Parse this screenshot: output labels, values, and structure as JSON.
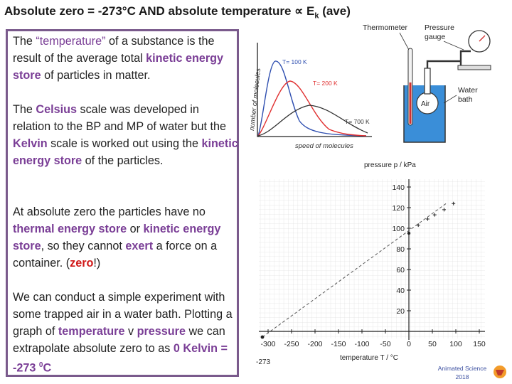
{
  "title": {
    "pre": "Absolute zero  = -273°C  AND absolute temperature ∝ E",
    "sub": "k",
    "post": " (ave)"
  },
  "p1": {
    "a": "The ",
    "b": "“temperature”",
    "c": " of a substance is the result of the average total ",
    "d": "kinetic energy store",
    "e": " of particles in matter."
  },
  "p2": {
    "a": "The ",
    "b": "Celsius",
    "c": " scale was developed in relation to the BP and MP of water but the ",
    "d": "Kelvin",
    "e": " scale is worked out using the ",
    "f": "kinetic energy store",
    "g": " of the particles."
  },
  "p3": {
    "a": "At absolute zero the particles have no ",
    "b": "thermal energy store",
    "c": " or ",
    "d": "kinetic energy store",
    "e": ", so they cannot ",
    "f": "exert",
    "g": " a force on a container. (",
    "h": "zero",
    "i": "!)"
  },
  "p4": {
    "a": "We can conduct a simple experiment with some trapped air in a water bath. Plotting a graph of ",
    "b": "temperature",
    "c": " v ",
    "d": "pressure",
    "e": " we can extrapolate absolute zero to as ",
    "f": "0 Kelvin = -273 ",
    "g": "0",
    "h": "C"
  },
  "sketch": {
    "ylabel": "number of molecules",
    "xlabel": "speed of molecules",
    "labels": [
      "T= 100 K",
      "T= 200 K",
      "T= 700 K"
    ]
  },
  "apparatus": {
    "thermometer": "Thermometer",
    "gauge1": "Pressure",
    "gauge2": "gauge",
    "air": "Air",
    "water1": "Water",
    "water2": "bath"
  },
  "graph": {
    "ylabel": "pressure p / kPa",
    "xlabel": "temperature T / °C",
    "yticks": [
      "140",
      "120",
      "100",
      "80",
      "60",
      "40",
      "20"
    ],
    "xticks": [
      "-300",
      "-250",
      "-200",
      "-150",
      "-100",
      "-50",
      "0",
      "50",
      "100",
      "150"
    ],
    "zero_label": "-273"
  },
  "credit": {
    "line1": "Animated Science",
    "line2": "2018"
  }
}
